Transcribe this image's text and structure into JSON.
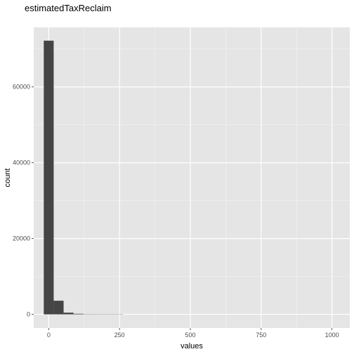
{
  "chart_data": {
    "type": "bar",
    "title": "estimatedTaxReclaim",
    "xlabel": "values",
    "ylabel": "count",
    "x_ticks": [
      0,
      250,
      500,
      750,
      1000
    ],
    "y_ticks": [
      0,
      20000,
      40000,
      60000
    ],
    "x_tick_labels": [
      "0",
      "250",
      "500",
      "750",
      "1000"
    ],
    "y_tick_labels": [
      "0",
      "20000",
      "40000",
      "60000"
    ],
    "xlim": [
      -53,
      1063
    ],
    "ylim": [
      -3600,
      75700
    ],
    "bin_width": 35,
    "bins": [
      {
        "x0": -17.5,
        "x1": 17.5,
        "count": 72200
      },
      {
        "x0": 17.5,
        "x1": 52.5,
        "count": 3600
      },
      {
        "x0": 52.5,
        "x1": 87.5,
        "count": 450
      },
      {
        "x0": 87.5,
        "x1": 122.5,
        "count": 150
      },
      {
        "x0": 122.5,
        "x1": 157.5,
        "count": 60
      },
      {
        "x0": 157.5,
        "x1": 192.5,
        "count": 30
      },
      {
        "x0": 192.5,
        "x1": 227.5,
        "count": 15
      },
      {
        "x0": 227.5,
        "x1": 262.5,
        "count": 8
      }
    ],
    "grid": true,
    "colors": {
      "panel_background": "#e5e5e5",
      "grid_major": "#ffffff",
      "grid_minor": "#f2f2f2",
      "bar_fill": "#454545",
      "tick_text": "#4d4d4d",
      "tick_mark": "#333333"
    }
  }
}
